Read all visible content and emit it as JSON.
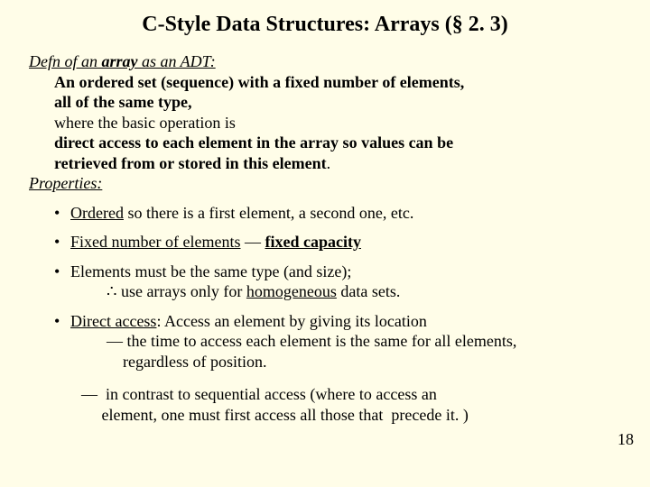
{
  "title_fontsize": 24,
  "body_fontsize": 18,
  "title": "C-Style Data Structures:  Arrays (§ 2. 3)",
  "defn": {
    "label_pre": "Defn of an ",
    "label_array": "array",
    "label_post": " as an ADT:",
    "line1a": "An ordered set (sequence) with a fixed number of elements,",
    "line1b": "all of the same type,",
    "line2": "where the basic operation is",
    "line3a": "direct access to each element in the array so values can be",
    "line3b": "retrieved from or stored in this element",
    "period": "."
  },
  "properties_label": "Properties:",
  "bullets": {
    "b1_pre": "Ordered",
    "b1_post": " so there is a first element, a second one, etc.",
    "b2_pre": "Fixed number of elements",
    "b2_mid": " — ",
    "b2_post": "fixed capacity",
    "b3_main": "Elements must be the same type (and size);",
    "b3_therefore": "∴",
    "b3_sub_pre": "  use arrays only for ",
    "b3_sub_u": "homogeneous",
    "b3_sub_post": " data sets.",
    "b4_pre": "Direct access",
    "b4_post": ":  Access an element  by giving its location",
    "b4_sub1": "— the time to access each element is the same for all elements,",
    "b4_sub2": "    regardless of position.",
    "b5_line1": "—  in contrast to sequential access (where to access an",
    "b5_line2": "     element, one must first access all those that  precede it. )"
  },
  "page_number": "18"
}
